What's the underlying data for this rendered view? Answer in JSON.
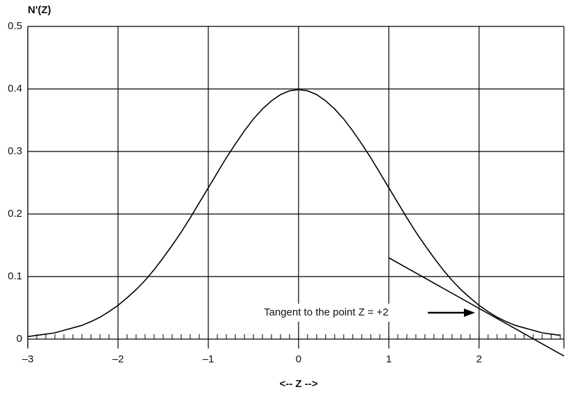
{
  "chart_data": {
    "type": "line",
    "y_axis_label": "N'(Z)",
    "x_axis_label": "<-- Z -->",
    "annotation": "Tangent to the point Z = +2",
    "x": [
      -3.0,
      -2.9,
      -2.8,
      -2.7,
      -2.6,
      -2.5,
      -2.4,
      -2.3,
      -2.2,
      -2.1,
      -2.0,
      -1.9,
      -1.8,
      -1.7,
      -1.6,
      -1.5,
      -1.4,
      -1.3,
      -1.2,
      -1.1,
      -1.0,
      -0.9,
      -0.8,
      -0.7,
      -0.6,
      -0.5,
      -0.4,
      -0.3,
      -0.2,
      -0.1,
      0.0,
      0.1,
      0.2,
      0.3,
      0.4,
      0.5,
      0.6,
      0.7,
      0.8,
      0.9,
      1.0,
      1.1,
      1.2,
      1.3,
      1.4,
      1.5,
      1.6,
      1.7,
      1.8,
      1.9,
      2.0,
      2.1,
      2.2,
      2.3,
      2.4,
      2.5,
      2.6,
      2.7,
      2.8,
      2.9
    ],
    "series": [
      {
        "color": "#000000",
        "values": [
          0.004,
          0.006,
          0.008,
          0.01,
          0.014,
          0.018,
          0.022,
          0.028,
          0.035,
          0.044,
          0.054,
          0.066,
          0.079,
          0.094,
          0.111,
          0.13,
          0.15,
          0.171,
          0.194,
          0.218,
          0.242,
          0.266,
          0.29,
          0.312,
          0.333,
          0.352,
          0.368,
          0.381,
          0.391,
          0.397,
          0.399,
          0.397,
          0.391,
          0.381,
          0.368,
          0.352,
          0.333,
          0.312,
          0.29,
          0.266,
          0.242,
          0.218,
          0.194,
          0.171,
          0.15,
          0.13,
          0.111,
          0.094,
          0.079,
          0.066,
          0.054,
          0.044,
          0.035,
          0.028,
          0.022,
          0.018,
          0.014,
          0.01,
          0.008,
          0.006
        ]
      }
    ],
    "tangent": {
      "x": [
        1,
        2.94
      ],
      "values": [
        0.13,
        -0.027
      ],
      "color": "#000000"
    },
    "xlim": [
      -3,
      2.94
    ],
    "ylim": [
      -0.015,
      0.5
    ],
    "xticks": [
      {
        "value": -3,
        "label": "–3"
      },
      {
        "value": -2,
        "label": "–2"
      },
      {
        "value": -1,
        "label": "–1"
      },
      0,
      1,
      2
    ],
    "yticks": [
      0,
      0.1,
      0.2,
      0.3,
      0.4,
      0.5
    ],
    "grid": true
  }
}
